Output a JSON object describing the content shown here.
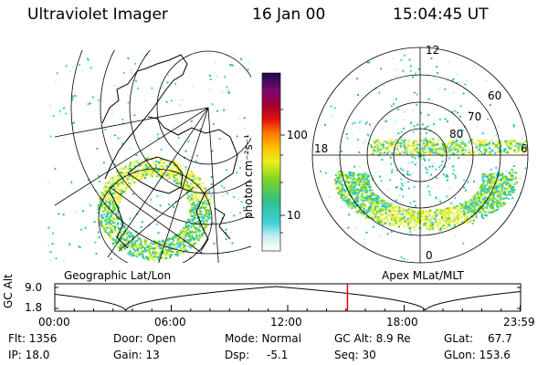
{
  "header": {
    "instrument": "Ultraviolet Imager",
    "date": "16 Jan 00",
    "time": "15:04:45 UT"
  },
  "left_panel": {
    "label": "Geographic Lat/Lon"
  },
  "right_panel": {
    "label": "Apex MLat/MLT",
    "mlt_labels": [
      "12",
      "18",
      "6",
      "0"
    ],
    "lat_labels": [
      "60",
      "70",
      "80"
    ]
  },
  "colorbar": {
    "unit_label": "photon cm⁻²s⁻¹",
    "tick_labels": [
      "100",
      "10"
    ],
    "scale": "log"
  },
  "altitude_plot": {
    "axis_label": "GC Alt",
    "y_ticks": [
      "9.0",
      "1.8"
    ],
    "time_ticks": [
      "00:00",
      "06:00",
      "12:00",
      "18:00",
      "23:59"
    ],
    "current_marker_time": "15:04:45"
  },
  "info": {
    "flt": "Flt: 1356",
    "ip": "IP: 18.0",
    "door": "Door: Open",
    "gain": "Gain: 13",
    "mode": "Mode: Normal",
    "dsp": "Dsp:",
    "dsp_value": "-5.1",
    "gc_alt": "GC Alt: 8.9 Re",
    "seq": "Seq: 30",
    "glat": "GLat:",
    "glat_value": "67.7",
    "glon": "GLon: 153.6"
  },
  "colors": {
    "marker": "#e00000",
    "coast": "#000000"
  }
}
